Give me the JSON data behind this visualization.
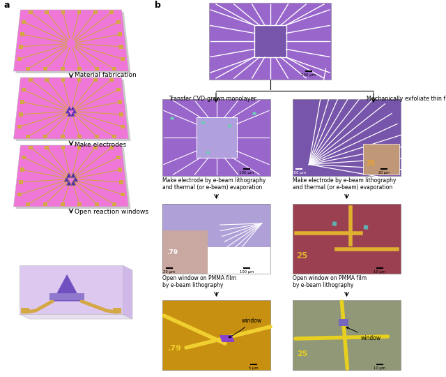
{
  "label_a": "a",
  "label_b": "b",
  "pink_chip": "#ee77d8",
  "pink_mid": "#e06cce",
  "purple_chip": "#9966cc",
  "purple_dark": "#7755aa",
  "purple_light": "#c8a8e8",
  "gold": "#d4a843",
  "dark_purple_feat": "#5533aa",
  "white": "#ffffff",
  "step1_label": "Material fabrication",
  "step2_label": "Make electrodes",
  "step3_label": "Open reaction windows",
  "step_b1_left": "Transfer CVD-grown monolayer",
  "step_b1_right": "Mechanically exfoliate thin flake",
  "step_b2_left": "Make electrode by e-beam lithography\nand thermal (or e-beam) evaporation",
  "step_b2_right": "Make electrode by e-beam lithography\nand thermal (or e-beam) evaporation",
  "step_b3_left": "Open window on PMMA film\nby e-beam lithography",
  "step_b3_right": "Open window on PMMA film\nby e-beam lithography",
  "gold_dark": "#c8960c",
  "brown_red": "#9a4050",
  "olive": "#8b8040",
  "tan": "#c09060"
}
